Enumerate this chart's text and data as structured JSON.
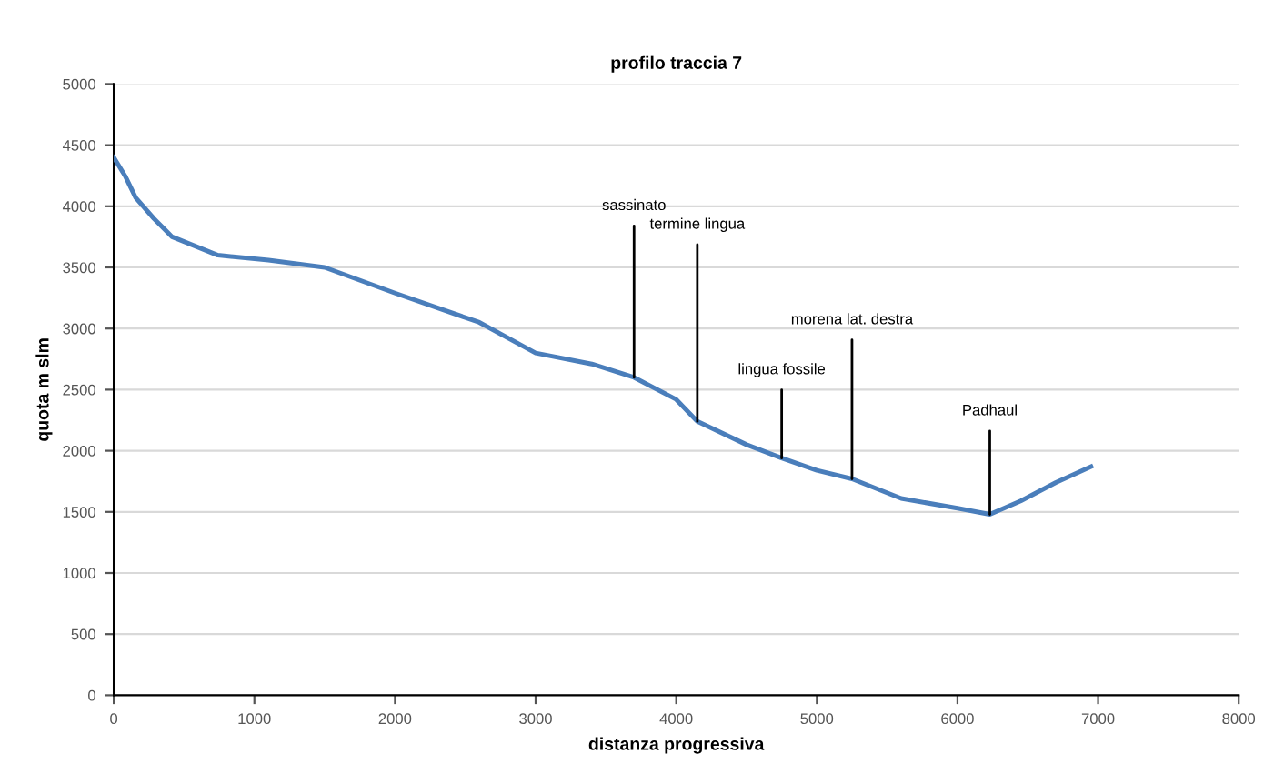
{
  "chart_data": {
    "type": "line",
    "title": "profilo traccia 7",
    "xlabel": "distanza progressiva",
    "ylabel": "quota m slm",
    "x": [
      0,
      80,
      156,
      285,
      415,
      740,
      1100,
      1500,
      2000,
      2600,
      3000,
      3400,
      3700,
      4000,
      4150,
      4500,
      4750,
      5000,
      5250,
      5600,
      6000,
      6230,
      6450,
      6700,
      6950
    ],
    "series": [
      {
        "color": "#4a7ebb",
        "values": [
          4400,
          4250,
          4070,
          3900,
          3750,
          3600,
          3560,
          3500,
          3290,
          3050,
          2800,
          2710,
          2600,
          2420,
          2240,
          2050,
          1940,
          1840,
          1770,
          1610,
          1530,
          1480,
          1590,
          1740,
          1870
        ]
      }
    ],
    "xlim": [
      0,
      8000
    ],
    "xticks": [
      0,
      1000,
      2000,
      3000,
      4000,
      5000,
      6000,
      7000,
      8000
    ],
    "ylim": [
      0,
      5000
    ],
    "yticks": [
      0,
      500,
      1000,
      1500,
      2000,
      2500,
      3000,
      3500,
      4000,
      4500,
      5000
    ],
    "grid": "y",
    "marker": "none",
    "line_style": "solid",
    "annotations": [
      {
        "text": "sassinato",
        "x": 3700,
        "y": 2600
      },
      {
        "text": "termine lingua",
        "x": 4150,
        "y": 2240
      },
      {
        "text": "lingua fossile",
        "x": 4750,
        "y": 1940
      },
      {
        "text": "morena lat. destra",
        "x": 5250,
        "y": 1770
      },
      {
        "text": "Padhaul",
        "x": 6230,
        "y": 1480
      }
    ]
  }
}
